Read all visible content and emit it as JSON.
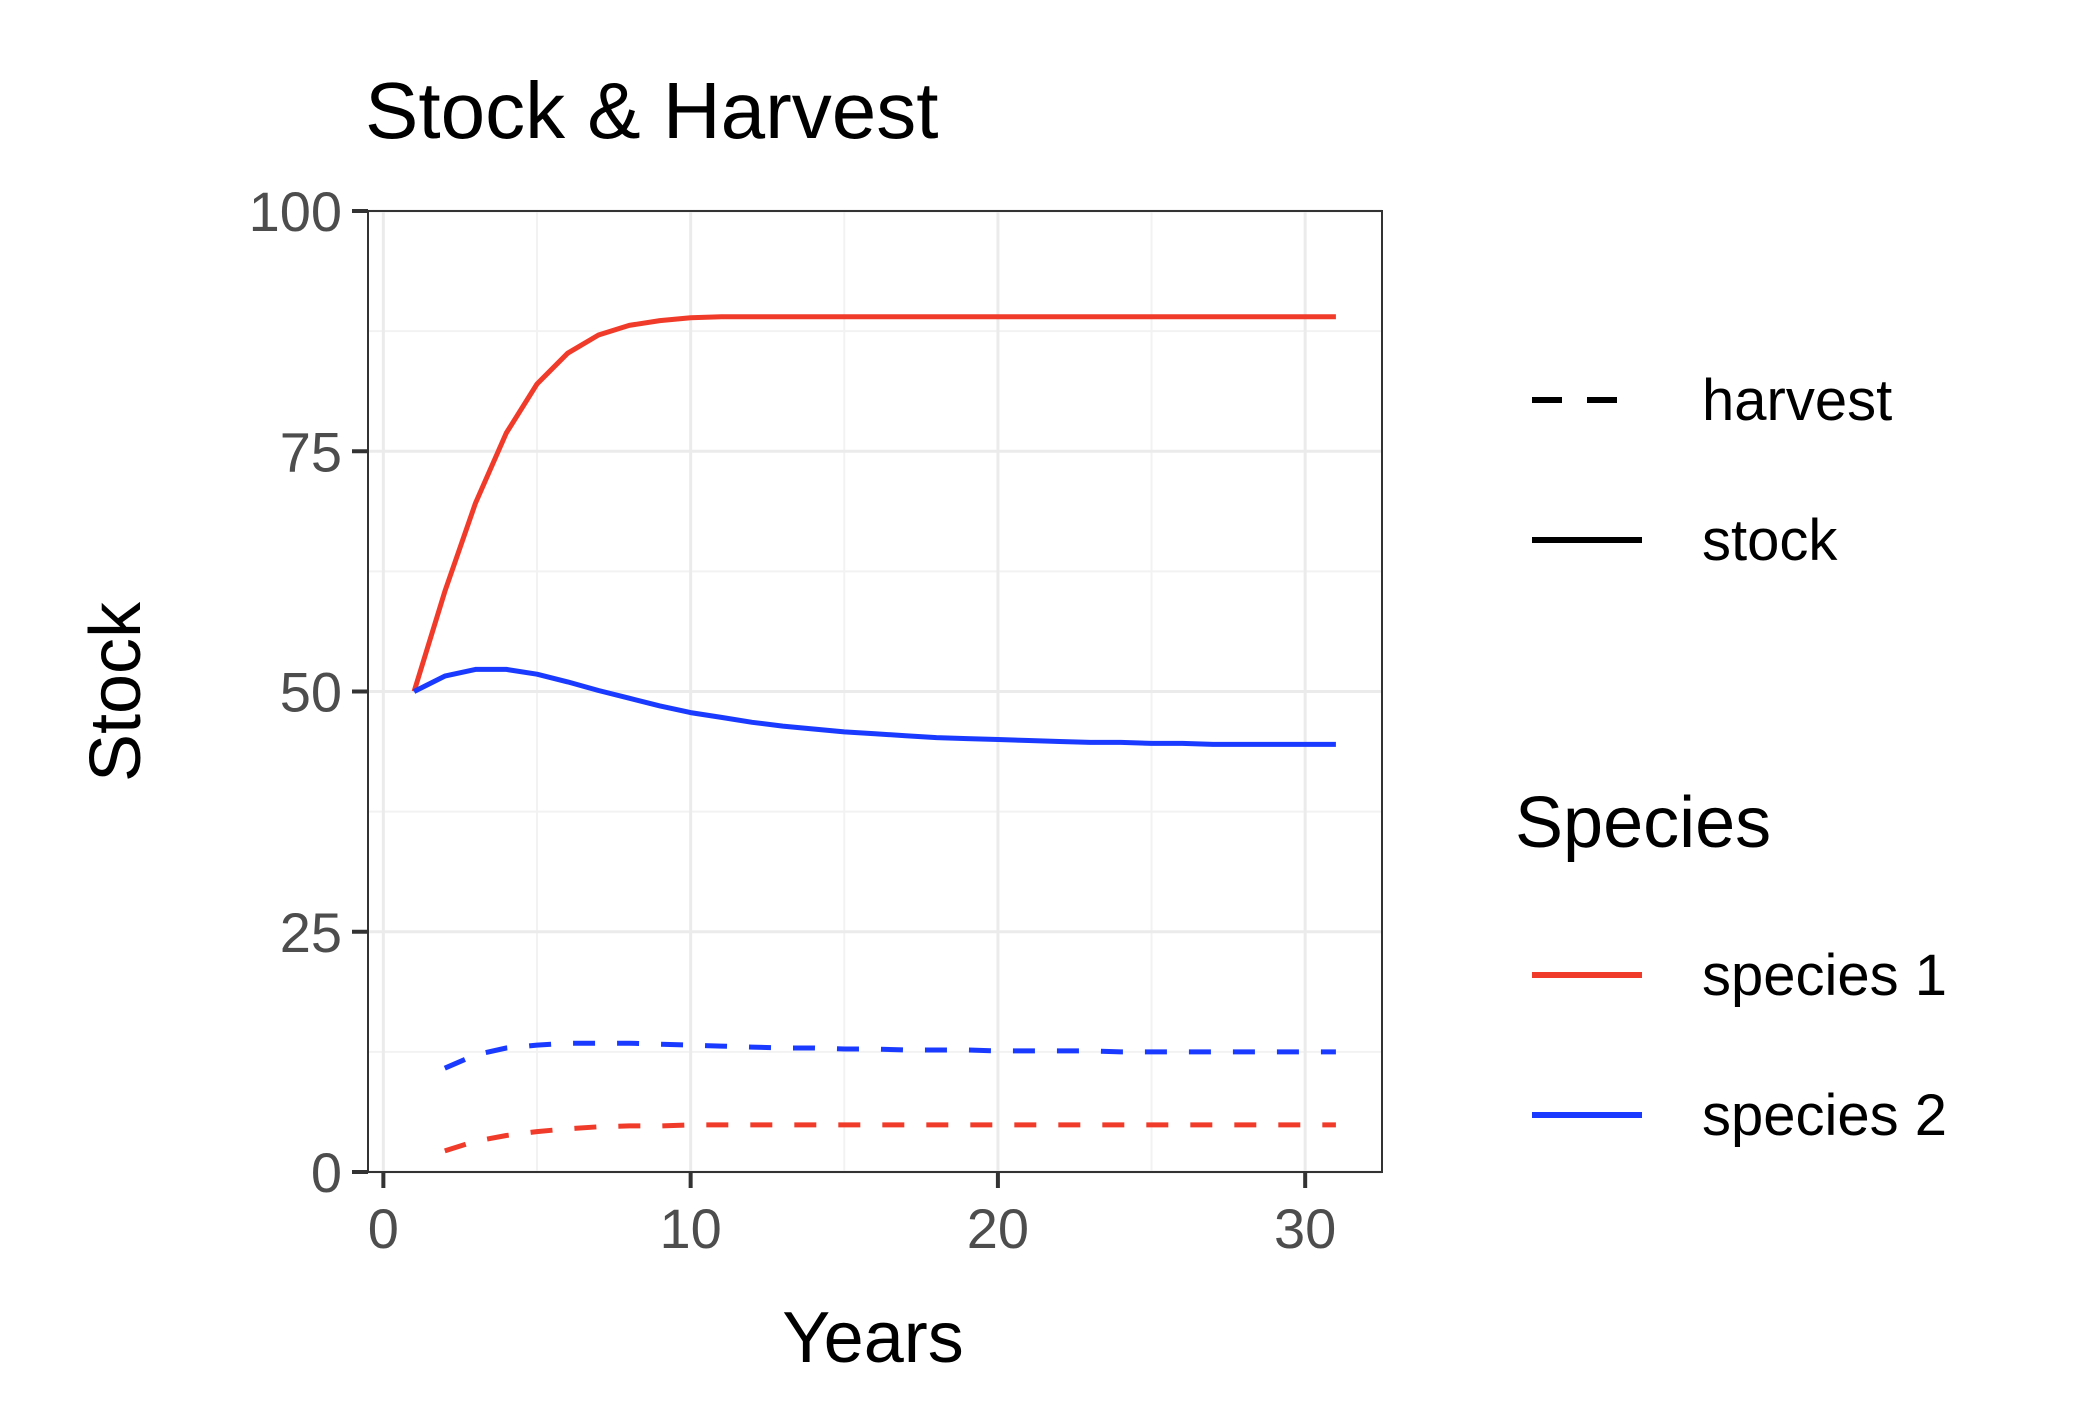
{
  "chart_data": {
    "type": "line",
    "title": "Stock & Harvest",
    "xlabel": "Years",
    "ylabel": "Stock",
    "xlim": [
      -0.5,
      32.5
    ],
    "ylim": [
      0,
      100
    ],
    "x_ticks": [
      0,
      10,
      20,
      30
    ],
    "y_ticks": [
      0,
      25,
      50,
      75,
      100
    ],
    "grid": true,
    "legend_position": "right",
    "linetype_legend": [
      {
        "label": "harvest",
        "dash": "dashed"
      },
      {
        "label": "stock",
        "dash": "solid"
      }
    ],
    "color_legend_title": "Species",
    "color_legend": [
      {
        "label": "species 1",
        "color": "#F03B2A"
      },
      {
        "label": "species 2",
        "color": "#1A3BFF"
      }
    ],
    "series": [
      {
        "name": "species 1",
        "kind": "stock",
        "color": "#F03B2A",
        "dash": "solid",
        "x": [
          1,
          2,
          3,
          4,
          5,
          6,
          7,
          8,
          9,
          10,
          11,
          12,
          13,
          14,
          15,
          16,
          17,
          18,
          19,
          20,
          21,
          22,
          23,
          24,
          25,
          26,
          27,
          28,
          29,
          30,
          31
        ],
        "values": [
          50,
          60.4,
          69.6,
          76.9,
          82,
          85.2,
          87.1,
          88.1,
          88.6,
          88.9,
          89,
          89,
          89,
          89,
          89,
          89,
          89,
          89,
          89,
          89,
          89,
          89,
          89,
          89,
          89,
          89,
          89,
          89,
          89,
          89,
          89
        ]
      },
      {
        "name": "species 2",
        "kind": "stock",
        "color": "#1A3BFF",
        "dash": "solid",
        "x": [
          1,
          2,
          3,
          4,
          5,
          6,
          7,
          8,
          9,
          10,
          11,
          12,
          13,
          14,
          15,
          16,
          17,
          18,
          19,
          20,
          21,
          22,
          23,
          24,
          25,
          26,
          27,
          28,
          29,
          30,
          31
        ],
        "values": [
          50,
          51.6,
          52.3,
          52.3,
          51.8,
          51,
          50.1,
          49.3,
          48.5,
          47.8,
          47.3,
          46.8,
          46.4,
          46.1,
          45.8,
          45.6,
          45.4,
          45.2,
          45.1,
          45,
          44.9,
          44.8,
          44.7,
          44.7,
          44.6,
          44.6,
          44.5,
          44.5,
          44.5,
          44.5,
          44.5
        ]
      },
      {
        "name": "species 2",
        "kind": "harvest",
        "color": "#1A3BFF",
        "dash": "dashed",
        "x": [
          2,
          3,
          4,
          5,
          6,
          7,
          8,
          9,
          10,
          11,
          12,
          13,
          14,
          15,
          16,
          17,
          18,
          19,
          20,
          21,
          22,
          23,
          24,
          25,
          26,
          27,
          28,
          29,
          30,
          31
        ],
        "values": [
          10.8,
          12.2,
          12.9,
          13.2,
          13.4,
          13.4,
          13.4,
          13.3,
          13.2,
          13.1,
          13,
          12.9,
          12.9,
          12.8,
          12.8,
          12.7,
          12.7,
          12.7,
          12.6,
          12.6,
          12.6,
          12.6,
          12.5,
          12.5,
          12.5,
          12.5,
          12.5,
          12.5,
          12.5,
          12.5
        ]
      },
      {
        "name": "species 1",
        "kind": "harvest",
        "color": "#F03B2A",
        "dash": "dashed",
        "x": [
          2,
          3,
          4,
          5,
          6,
          7,
          8,
          9,
          10,
          11,
          12,
          13,
          14,
          15,
          16,
          17,
          18,
          19,
          20,
          21,
          22,
          23,
          24,
          25,
          26,
          27,
          28,
          29,
          30,
          31
        ],
        "values": [
          2.2,
          3.2,
          3.8,
          4.2,
          4.5,
          4.7,
          4.8,
          4.8,
          4.9,
          4.9,
          4.9,
          4.9,
          4.9,
          4.9,
          4.9,
          4.9,
          4.9,
          4.9,
          4.9,
          4.9,
          4.9,
          4.9,
          4.9,
          4.9,
          4.9,
          4.9,
          4.9,
          4.9,
          4.9,
          4.9
        ]
      }
    ]
  }
}
